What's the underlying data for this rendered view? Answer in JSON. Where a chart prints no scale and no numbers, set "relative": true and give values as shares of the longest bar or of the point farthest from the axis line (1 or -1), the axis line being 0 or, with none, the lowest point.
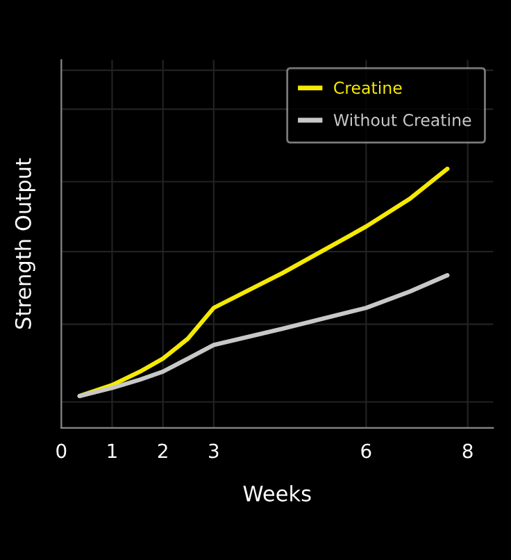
{
  "chart_data": {
    "type": "line",
    "relative": true,
    "xlabel": "Weeks",
    "ylabel": "Strength Output",
    "xlim": [
      0,
      8.5
    ],
    "xticks": [
      0,
      1,
      2,
      3,
      6,
      8
    ],
    "x": [
      0.36,
      1.0,
      1.55,
      2.0,
      2.49,
      3.0,
      4.36,
      6.0,
      6.86,
      7.6
    ],
    "series": [
      {
        "name": "Creatine",
        "color": "#f5ea00",
        "values": [
          0.123,
          0.165,
          0.217,
          0.267,
          0.344,
          0.463,
          0.598,
          0.777,
          0.884,
          1.0
        ]
      },
      {
        "name": "Without Creatine",
        "color": "#c8c8c8",
        "values": [
          0.123,
          0.154,
          0.186,
          0.217,
          0.267,
          0.32,
          0.383,
          0.463,
          0.526,
          0.589
        ]
      }
    ],
    "grid": true,
    "legend": "top right",
    "line_style": "solid",
    "marker": "none"
  }
}
